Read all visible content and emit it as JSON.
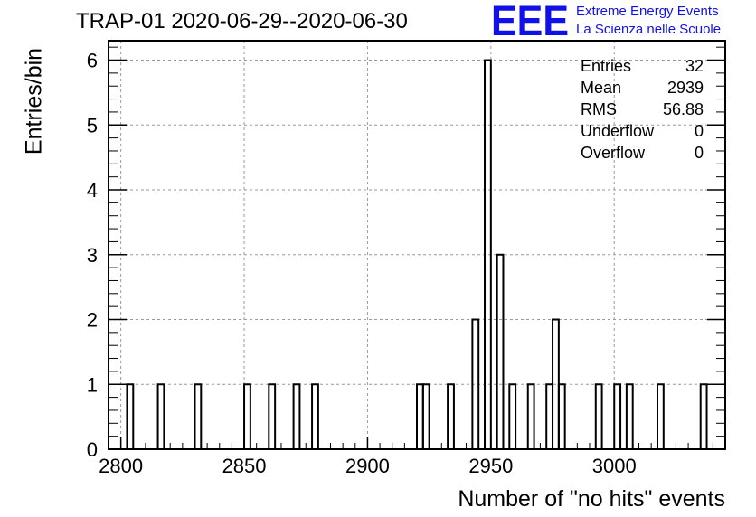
{
  "title": "TRAP-01 2020-06-29--2020-06-30",
  "logo": {
    "mark": "EEE",
    "line1": "Extreme Energy Events",
    "line2": "La Scienza nelle Scuole",
    "color": "#1010e8"
  },
  "stats": [
    {
      "label": "Entries",
      "value": "32"
    },
    {
      "label": "Mean",
      "value": "2939"
    },
    {
      "label": "RMS",
      "value": "56.88"
    },
    {
      "label": "Underflow",
      "value": "0"
    },
    {
      "label": "Overflow",
      "value": "0"
    }
  ],
  "chart_data": {
    "type": "bar",
    "title": "TRAP-01 2020-06-29--2020-06-30",
    "xlabel": "Number of \"no hits\" events",
    "ylabel": "Entries/bin",
    "xlim": [
      2795,
      3045
    ],
    "ylim": [
      0,
      6.3
    ],
    "bin_width": 2.5,
    "grid": true,
    "line_color": "#000000",
    "x_ticks": [
      2800,
      2850,
      2900,
      2950,
      3000
    ],
    "y_ticks": [
      0,
      1,
      2,
      3,
      4,
      5,
      6
    ],
    "bins": [
      {
        "x": 2802.5,
        "count": 1
      },
      {
        "x": 2815,
        "count": 1
      },
      {
        "x": 2830,
        "count": 1
      },
      {
        "x": 2850,
        "count": 1
      },
      {
        "x": 2860,
        "count": 1
      },
      {
        "x": 2870,
        "count": 1
      },
      {
        "x": 2877.5,
        "count": 1
      },
      {
        "x": 2920,
        "count": 1
      },
      {
        "x": 2922.5,
        "count": 1
      },
      {
        "x": 2932.5,
        "count": 1
      },
      {
        "x": 2942.5,
        "count": 2
      },
      {
        "x": 2947.5,
        "count": 6
      },
      {
        "x": 2952.5,
        "count": 3
      },
      {
        "x": 2957.5,
        "count": 1
      },
      {
        "x": 2965,
        "count": 1
      },
      {
        "x": 2972.5,
        "count": 1
      },
      {
        "x": 2975,
        "count": 2
      },
      {
        "x": 2977.5,
        "count": 1
      },
      {
        "x": 2992.5,
        "count": 1
      },
      {
        "x": 3000,
        "count": 1
      },
      {
        "x": 3005,
        "count": 1
      },
      {
        "x": 3017.5,
        "count": 1
      },
      {
        "x": 3035,
        "count": 1
      }
    ]
  }
}
